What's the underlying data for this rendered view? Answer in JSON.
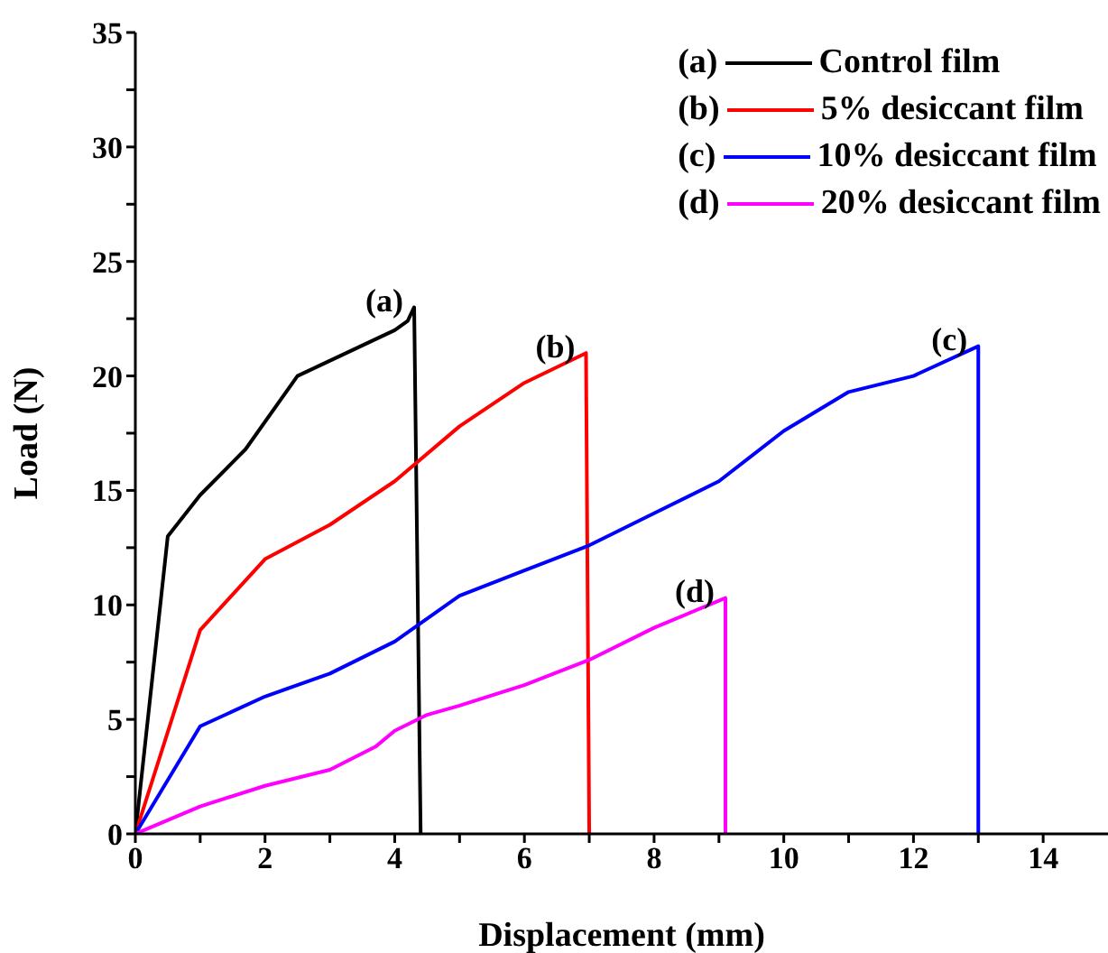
{
  "chart_data": {
    "type": "line",
    "xlabel": "Displacement (mm)",
    "ylabel": "Load (N)",
    "xlim": [
      0,
      15
    ],
    "ylim": [
      0,
      35
    ],
    "xticks": [
      0,
      {
        "value": 1,
        "label": null
      },
      2,
      {
        "value": 3,
        "label": null
      },
      4,
      {
        "value": 5,
        "label": null
      },
      6,
      {
        "value": 7,
        "label": null
      },
      8,
      {
        "value": 9,
        "label": null
      },
      10,
      {
        "value": 11,
        "label": null
      },
      12,
      {
        "value": 13,
        "label": null
      },
      14
    ],
    "yticks": [
      0,
      {
        "value": 2.5,
        "label": null
      },
      5,
      {
        "value": 7.5,
        "label": null
      },
      10,
      {
        "value": 12.5,
        "label": null
      },
      15,
      {
        "value": 17.5,
        "label": null
      },
      20,
      {
        "value": 22.5,
        "label": null
      },
      25,
      {
        "value": 27.5,
        "label": null
      },
      30,
      {
        "value": 32.5,
        "label": null
      },
      35
    ],
    "grid": false,
    "legend": "top right",
    "marker": "none",
    "line_style": "solid",
    "annotations": [
      {
        "text": "(a)",
        "x": 4.3,
        "y": 23
      },
      {
        "text": "(b)",
        "x": 6.95,
        "y": 21
      },
      {
        "text": "(c)",
        "x": 13,
        "y": 21.3
      },
      {
        "text": "(d)",
        "x": 9.1,
        "y": 10.3
      }
    ],
    "series": [
      {
        "name": "Control film",
        "color": "#000000",
        "x": [
          0,
          0.5,
          1,
          1.7,
          2.5,
          4,
          4.2,
          4.3,
          4.4
        ],
        "values": [
          0,
          13,
          14.8,
          16.8,
          20,
          22,
          22.4,
          23,
          0
        ]
      },
      {
        "name": "5% desiccant film",
        "color": "#ff0000",
        "x": [
          0,
          1,
          2,
          3,
          4,
          5,
          6,
          6.95,
          7
        ],
        "values": [
          0,
          8.9,
          12,
          13.5,
          15.4,
          17.8,
          19.7,
          21,
          0
        ]
      },
      {
        "name": "10% desiccant film",
        "color": "#0000ff",
        "x": [
          0,
          1,
          2,
          3,
          4,
          5,
          6,
          7,
          8,
          9,
          10,
          11,
          12,
          13,
          13
        ],
        "values": [
          0,
          4.7,
          6,
          7,
          8.4,
          10.4,
          11.5,
          12.6,
          14,
          15.4,
          17.6,
          19.3,
          20,
          21.3,
          0
        ]
      },
      {
        "name": "20% desiccant film",
        "color": "#ff00ff",
        "x": [
          0,
          1,
          2,
          3,
          3.7,
          4,
          4.5,
          5,
          6,
          7,
          8,
          9.1,
          9.1
        ],
        "values": [
          0,
          1.2,
          2.1,
          2.8,
          3.8,
          4.5,
          5.2,
          5.6,
          6.5,
          7.6,
          9,
          10.3,
          0
        ]
      }
    ]
  }
}
